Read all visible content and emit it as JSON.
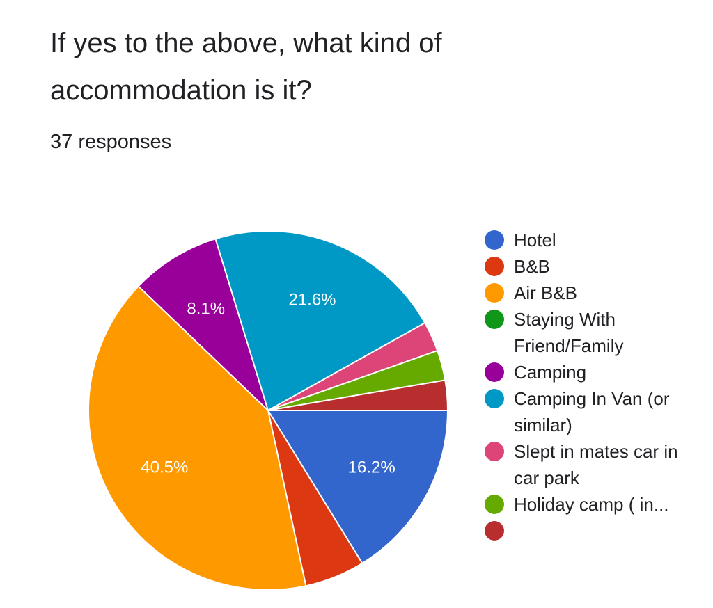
{
  "chart_data": {
    "type": "pie",
    "title": "If yes to the above, what kind of accommodation is it?",
    "subtitle": "37 responses",
    "categories": [
      "Hotel",
      "B&B",
      "Air B&B",
      "Staying With Friend/Family",
      "Camping",
      "Camping In Van (or similar)",
      "Slept in mates car in car park",
      "Holiday camp ( in...",
      null
    ],
    "values": [
      16.2,
      5.4,
      40.5,
      0,
      8.1,
      21.6,
      2.7,
      2.7,
      2.7
    ],
    "value_labels": [
      "16.2%",
      null,
      "40.5%",
      null,
      "8.1%",
      "21.6%",
      null,
      null,
      null
    ],
    "colors": [
      "#3366cc",
      "#dc3912",
      "#ff9900",
      "#109618",
      "#990099",
      "#0099c6",
      "#dd4477",
      "#66aa00",
      "#b82e2e"
    ],
    "legend": "right"
  }
}
